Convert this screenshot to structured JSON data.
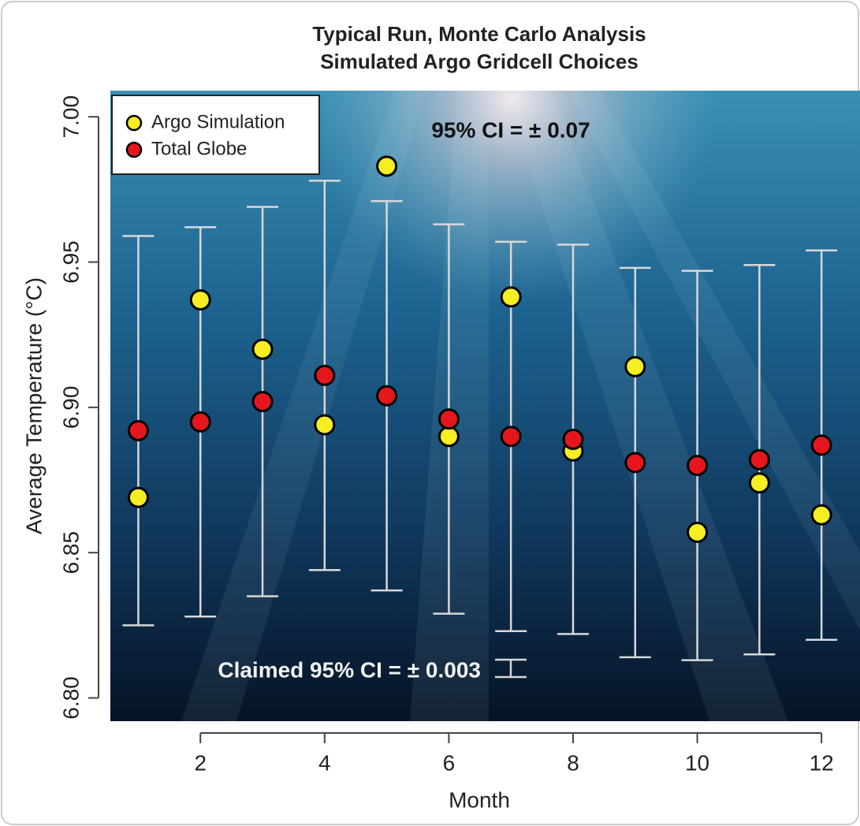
{
  "chart_data": {
    "type": "scatter",
    "title": "Typical Run, Monte Carlo Analysis",
    "subtitle": "Simulated Argo Gridcell Choices",
    "x_label": "Month",
    "y_label": "Average Temperature (°C)",
    "annotations": [
      "95% CI = ± 0.07",
      "Claimed 95% CI = ± 0.003"
    ],
    "claimed_ci": 0.003,
    "x": [
      1,
      2,
      3,
      4,
      5,
      6,
      7,
      8,
      9,
      10,
      11,
      12
    ],
    "series": [
      {
        "name": "Argo Simulation",
        "color": "#f4ee22",
        "values": [
          6.869,
          6.937,
          6.92,
          6.894,
          6.983,
          6.89,
          6.938,
          6.885,
          6.914,
          6.857,
          6.874,
          6.863
        ]
      },
      {
        "name": "Total Globe",
        "color": "#e5161d",
        "values": [
          6.892,
          6.895,
          6.902,
          6.911,
          6.904,
          6.896,
          6.89,
          6.889,
          6.881,
          6.88,
          6.882,
          6.887
        ],
        "errors": [
          0.067,
          0.067,
          0.067,
          0.067,
          0.067,
          0.067,
          0.067,
          0.067,
          0.067,
          0.067,
          0.067,
          0.067
        ]
      }
    ],
    "xlim": [
      0.55,
      12.62
    ],
    "ylim": [
      6.792,
      7.009
    ],
    "xticks": [
      2,
      4,
      6,
      8,
      10,
      12
    ],
    "yticks": [
      {
        "value": 6.8,
        "label": "6.80"
      },
      6.85,
      {
        "value": 6.9,
        "label": "6.90"
      },
      6.95,
      {
        "value": 7,
        "label": "7.00"
      }
    ],
    "legend": "top-left"
  }
}
